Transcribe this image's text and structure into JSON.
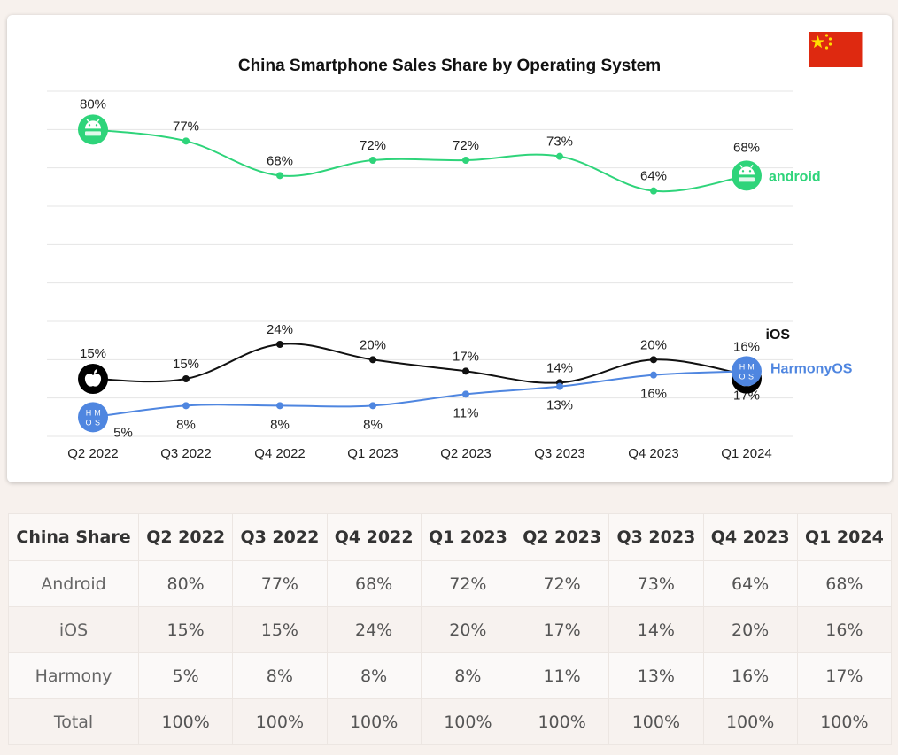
{
  "chart_data": {
    "type": "line",
    "title": "China Smartphone Sales Share by Operating System",
    "categories": [
      "Q2 2022",
      "Q3 2022",
      "Q4 2022",
      "Q1 2023",
      "Q2 2023",
      "Q3 2023",
      "Q4 2023",
      "Q1 2024"
    ],
    "series": [
      {
        "name": "android",
        "values": [
          80,
          77,
          68,
          72,
          72,
          73,
          64,
          68
        ],
        "color": "#2ed47a"
      },
      {
        "name": "iOS",
        "values": [
          15,
          15,
          24,
          20,
          17,
          14,
          20,
          16
        ],
        "color": "#111111"
      },
      {
        "name": "HarmonyOS",
        "values": [
          5,
          8,
          8,
          8,
          11,
          13,
          16,
          17
        ],
        "color": "#4f86e0"
      }
    ],
    "value_labels": {
      "android": [
        "80%",
        "77%",
        "68%",
        "72%",
        "72%",
        "73%",
        "64%",
        "68%"
      ],
      "iOS": [
        "15%",
        "15%",
        "24%",
        "20%",
        "17%",
        "14%",
        "20%",
        "16%"
      ],
      "HarmonyOS": [
        "5%",
        "8%",
        "8%",
        "8%",
        "11%",
        "13%",
        "16%",
        "17%"
      ]
    },
    "ylim": [
      0,
      90
    ],
    "grid": true,
    "icons": {
      "android": "android-logo-icon",
      "iOS": "apple-logo-icon",
      "HarmonyOS": "hmos-logo-icon"
    },
    "harmony_logo_text": [
      "H",
      "M",
      "O",
      "S"
    ],
    "flag": "china-flag-icon"
  },
  "table": {
    "headers": [
      "China Share",
      "Q2 2022",
      "Q3 2022",
      "Q4 2022",
      "Q1 2023",
      "Q2 2023",
      "Q3 2023",
      "Q4 2023",
      "Q1 2024"
    ],
    "rows": [
      [
        "Android",
        "80%",
        "77%",
        "68%",
        "72%",
        "72%",
        "73%",
        "64%",
        "68%"
      ],
      [
        "iOS",
        "15%",
        "15%",
        "24%",
        "20%",
        "17%",
        "14%",
        "20%",
        "16%"
      ],
      [
        "Harmony",
        "5%",
        "8%",
        "8%",
        "8%",
        "11%",
        "13%",
        "16%",
        "17%"
      ],
      [
        "Total",
        "100%",
        "100%",
        "100%",
        "100%",
        "100%",
        "100%",
        "100%",
        "100%"
      ]
    ]
  }
}
